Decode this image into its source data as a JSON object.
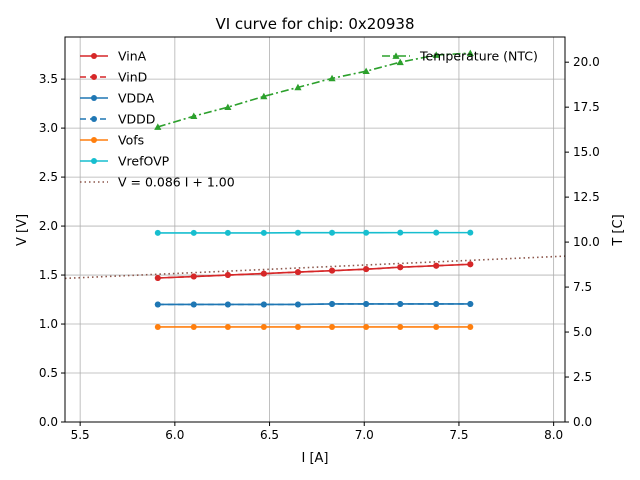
{
  "chart_data": {
    "type": "line",
    "title": "VI curve for chip: 0x20938",
    "xlabel": "I [A]",
    "ylabel": "V [V]",
    "y2label": "T [C]",
    "xlim": [
      5.42,
      8.06
    ],
    "ylim": [
      0.0,
      3.93
    ],
    "y2lim": [
      0.0,
      21.4
    ],
    "xticks": [
      5.5,
      6.0,
      6.5,
      7.0,
      7.5,
      8.0
    ],
    "xtick_labels": [
      "5.5",
      "6.0",
      "6.5",
      "7.0",
      "7.5",
      "8.0"
    ],
    "yticks": [
      0.0,
      0.5,
      1.0,
      1.5,
      2.0,
      2.5,
      3.0,
      3.5
    ],
    "ytick_labels": [
      "0.0",
      "0.5",
      "1.0",
      "1.5",
      "2.0",
      "2.5",
      "3.0",
      "3.5"
    ],
    "y2ticks": [
      0.0,
      2.5,
      5.0,
      7.5,
      10.0,
      12.5,
      15.0,
      17.5,
      20.0
    ],
    "y2tick_labels": [
      "0.0",
      "2.5",
      "5.0",
      "7.5",
      "10.0",
      "12.5",
      "15.0",
      "17.5",
      "20.0"
    ],
    "grid": true,
    "x": [
      5.91,
      6.1,
      6.28,
      6.47,
      6.65,
      6.83,
      7.01,
      7.19,
      7.38,
      7.56
    ],
    "series": [
      {
        "name": "VinA",
        "color": "#d62728",
        "dash": "solid",
        "marker": "circle",
        "axis": "left",
        "values": [
          1.47,
          1.485,
          1.5,
          1.515,
          1.53,
          1.545,
          1.56,
          1.58,
          1.595,
          1.61
        ]
      },
      {
        "name": "VinD",
        "color": "#d62728",
        "dash": "dashed",
        "marker": "circle",
        "axis": "left",
        "values": [
          1.47,
          1.485,
          1.5,
          1.515,
          1.53,
          1.545,
          1.56,
          1.58,
          1.595,
          1.61
        ]
      },
      {
        "name": "VDDA",
        "color": "#1f77b4",
        "dash": "solid",
        "marker": "circle",
        "axis": "left",
        "values": [
          1.2,
          1.2,
          1.2,
          1.2,
          1.2,
          1.205,
          1.205,
          1.205,
          1.205,
          1.205
        ]
      },
      {
        "name": "VDDD",
        "color": "#1f77b4",
        "dash": "dashed",
        "marker": "circle",
        "axis": "left",
        "values": [
          1.2,
          1.2,
          1.2,
          1.2,
          1.2,
          1.205,
          1.205,
          1.205,
          1.205,
          1.205
        ]
      },
      {
        "name": "Vofs",
        "color": "#ff7f0e",
        "dash": "solid",
        "marker": "circle",
        "axis": "left",
        "values": [
          0.97,
          0.97,
          0.97,
          0.97,
          0.97,
          0.97,
          0.97,
          0.97,
          0.97,
          0.97
        ]
      },
      {
        "name": "VrefOVP",
        "color": "#17becf",
        "dash": "solid",
        "marker": "circle",
        "axis": "left",
        "values": [
          1.93,
          1.93,
          1.93,
          1.93,
          1.932,
          1.932,
          1.932,
          1.933,
          1.933,
          1.933
        ]
      },
      {
        "name": "V = 0.086 I + 1.00",
        "color": "#8c564b",
        "dash": "dotted",
        "marker": "none",
        "axis": "left",
        "fit": {
          "slope": 0.086,
          "intercept": 1.0
        }
      },
      {
        "name": "Temperature (NTC)",
        "color": "#2ca02c",
        "dash": "dashdot",
        "marker": "triangle",
        "axis": "right",
        "values": [
          16.4,
          17.0,
          17.5,
          18.1,
          18.6,
          19.1,
          19.5,
          20.0,
          20.4,
          20.5
        ]
      }
    ],
    "legend_left": [
      "VinA",
      "VinD",
      "VDDA",
      "VDDD",
      "Vofs",
      "VrefOVP",
      "V = 0.086 I + 1.00"
    ],
    "legend_right": [
      "Temperature (NTC)"
    ],
    "legend_left_position": "upper-left",
    "legend_right_position": "upper-right"
  }
}
